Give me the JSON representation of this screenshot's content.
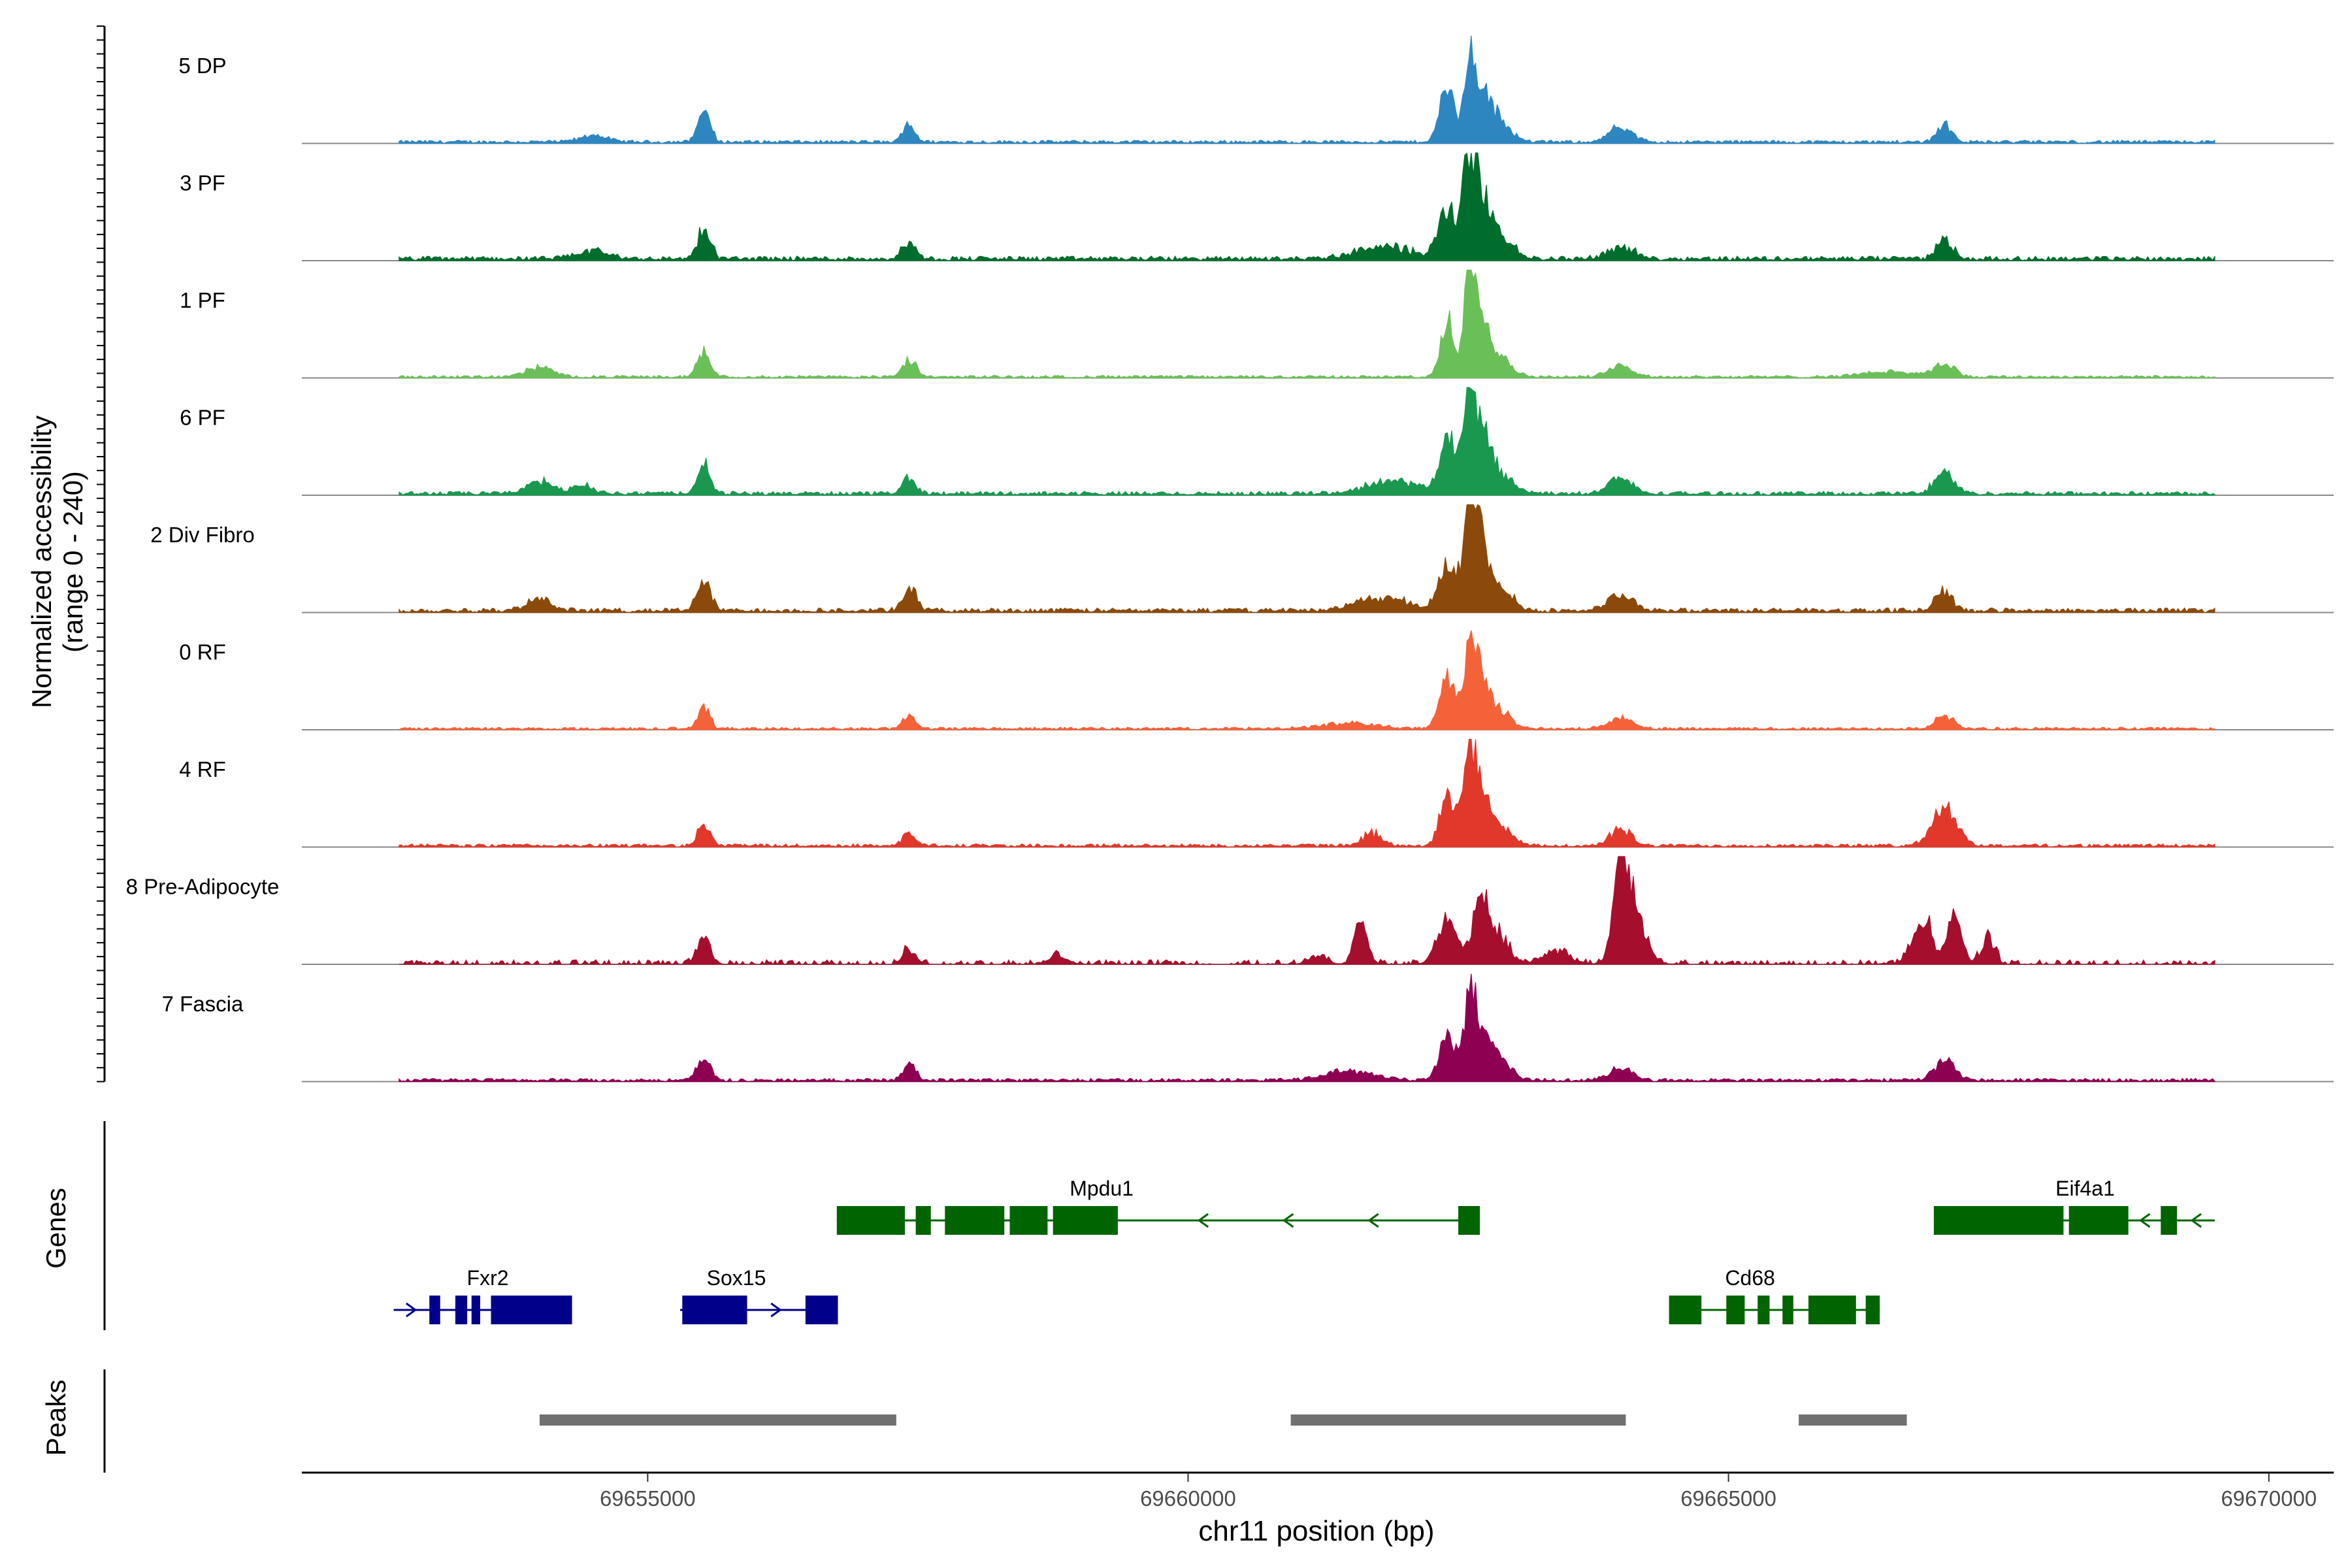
{
  "chart_data": {
    "type": "area",
    "title": "",
    "ylabel_line1": "Normalized accessibility",
    "ylabel_line2": "(range 0 - 240)",
    "xlabel": "chr11 position (bp)",
    "xlim": [
      69651800,
      69670600
    ],
    "x_ticks": [
      69655000,
      69660000,
      69665000,
      69670000
    ],
    "x_tick_labels": [
      "69655000",
      "69660000",
      "69665000",
      "69670000"
    ],
    "track_start": 69651800,
    "track_end": 69670600,
    "data_start": 69652700,
    "data_end": 69669500,
    "tracks": [
      {
        "name": "5 DP",
        "color": "#2E86C1",
        "noise": 0.05,
        "gap": 0,
        "peaks": [
          [
            69655520,
            0.27,
            55
          ],
          [
            69657420,
            0.18,
            50
          ],
          [
            69662400,
            0.47,
            70
          ],
          [
            69662600,
            0.62,
            45
          ],
          [
            69662700,
            0.4,
            80
          ],
          [
            69662850,
            0.2,
            120
          ],
          [
            69664000,
            0.12,
            110
          ],
          [
            69667000,
            0.15,
            70
          ],
          [
            69654500,
            0.06,
            120
          ]
        ]
      },
      {
        "name": "3 PF",
        "color": "#006D2C",
        "noise": 0.07,
        "gap": 0,
        "peaks": [
          [
            69655520,
            0.25,
            60
          ],
          [
            69657420,
            0.14,
            60
          ],
          [
            69662400,
            0.44,
            80
          ],
          [
            69662600,
            0.78,
            55
          ],
          [
            69662700,
            0.48,
            80
          ],
          [
            69662850,
            0.2,
            130
          ],
          [
            69664000,
            0.1,
            120
          ],
          [
            69667000,
            0.15,
            75
          ],
          [
            69654500,
            0.06,
            150
          ],
          [
            69661800,
            0.1,
            250
          ]
        ]
      },
      {
        "name": "1 PF",
        "color": "#6BBF59",
        "noise": 0.04,
        "gap": 0,
        "peaks": [
          [
            69655520,
            0.22,
            60
          ],
          [
            69657420,
            0.15,
            60
          ],
          [
            69662400,
            0.52,
            60
          ],
          [
            69662600,
            0.9,
            45
          ],
          [
            69662700,
            0.55,
            70
          ],
          [
            69662850,
            0.2,
            120
          ],
          [
            69664000,
            0.1,
            110
          ],
          [
            69667000,
            0.12,
            90
          ],
          [
            69654000,
            0.08,
            130
          ],
          [
            69666500,
            0.05,
            250
          ]
        ]
      },
      {
        "name": "6 PF",
        "color": "#1A9850",
        "noise": 0.06,
        "gap": 0,
        "peaks": [
          [
            69655520,
            0.25,
            55
          ],
          [
            69657420,
            0.14,
            60
          ],
          [
            69662400,
            0.5,
            70
          ],
          [
            69662600,
            0.76,
            55
          ],
          [
            69662700,
            0.46,
            80
          ],
          [
            69662850,
            0.2,
            130
          ],
          [
            69664000,
            0.12,
            110
          ],
          [
            69667000,
            0.18,
            90
          ],
          [
            69654000,
            0.1,
            120
          ],
          [
            69654400,
            0.06,
            120
          ],
          [
            69661900,
            0.1,
            250
          ]
        ]
      },
      {
        "name": "2 Div Fibro",
        "color": "#8B4A0B",
        "noise": 0.07,
        "gap": 0,
        "peaks": [
          [
            69655520,
            0.26,
            60
          ],
          [
            69657420,
            0.2,
            60
          ],
          [
            69662400,
            0.4,
            80
          ],
          [
            69662600,
            0.8,
            55
          ],
          [
            69662700,
            0.5,
            80
          ],
          [
            69662850,
            0.2,
            130
          ],
          [
            69664000,
            0.13,
            110
          ],
          [
            69667000,
            0.15,
            80
          ],
          [
            69654000,
            0.08,
            120
          ],
          [
            69661800,
            0.1,
            250
          ]
        ]
      },
      {
        "name": "0 RF",
        "color": "#F4623A",
        "noise": 0.04,
        "gap": 0,
        "peaks": [
          [
            69655520,
            0.22,
            50
          ],
          [
            69657420,
            0.13,
            50
          ],
          [
            69662400,
            0.46,
            70
          ],
          [
            69662600,
            0.7,
            50
          ],
          [
            69662700,
            0.45,
            70
          ],
          [
            69662850,
            0.18,
            120
          ],
          [
            69664000,
            0.1,
            110
          ],
          [
            69667000,
            0.12,
            80
          ],
          [
            69661500,
            0.05,
            250
          ]
        ]
      },
      {
        "name": "4 RF",
        "color": "#E0392B",
        "noise": 0.05,
        "gap": 0,
        "peaks": [
          [
            69655520,
            0.2,
            55
          ],
          [
            69657420,
            0.13,
            55
          ],
          [
            69662400,
            0.42,
            70
          ],
          [
            69662600,
            0.72,
            55
          ],
          [
            69662700,
            0.45,
            75
          ],
          [
            69662850,
            0.18,
            120
          ],
          [
            69664000,
            0.15,
            90
          ],
          [
            69667000,
            0.36,
            110
          ],
          [
            69661700,
            0.1,
            100
          ]
        ]
      },
      {
        "name": "8 Pre-Adipocyte",
        "color": "#A50F2D",
        "noise": 0.07,
        "gap": 0.5,
        "peaks": [
          [
            69655520,
            0.24,
            60
          ],
          [
            69657420,
            0.12,
            60
          ],
          [
            69661600,
            0.4,
            60
          ],
          [
            69662400,
            0.42,
            90
          ],
          [
            69662700,
            0.6,
            60
          ],
          [
            69662850,
            0.3,
            100
          ],
          [
            69664000,
            0.85,
            60
          ],
          [
            69664100,
            0.55,
            110
          ],
          [
            69666800,
            0.4,
            90
          ],
          [
            69667100,
            0.45,
            60
          ],
          [
            69667400,
            0.25,
            60
          ],
          [
            69663400,
            0.12,
            120
          ],
          [
            69658800,
            0.08,
            80
          ],
          [
            69661200,
            0.08,
            80
          ]
        ]
      },
      {
        "name": "7 Fascia",
        "color": "#8E0152",
        "noise": 0.05,
        "gap": 0,
        "peaks": [
          [
            69655520,
            0.22,
            55
          ],
          [
            69657420,
            0.15,
            60
          ],
          [
            69662400,
            0.4,
            70
          ],
          [
            69662600,
            0.58,
            60
          ],
          [
            69662700,
            0.38,
            80
          ],
          [
            69662850,
            0.18,
            120
          ],
          [
            69664000,
            0.1,
            110
          ],
          [
            69667000,
            0.18,
            90
          ],
          [
            69661500,
            0.07,
            250
          ]
        ]
      }
    ],
    "genes_label": "Genes",
    "genes": [
      {
        "name": "Mpdu1",
        "strand": "-",
        "color": "#006400",
        "row": 0,
        "start": 69656750,
        "end": 69662700,
        "exons": [
          [
            69656750,
            69657380
          ],
          [
            69657480,
            69657620
          ],
          [
            69657750,
            69658300
          ],
          [
            69658350,
            69658700
          ],
          [
            69658750,
            69659350
          ],
          [
            69662500,
            69662700
          ]
        ]
      },
      {
        "name": "Eif4a1",
        "strand": "-",
        "color": "#006400",
        "row": 0,
        "start": 69666900,
        "end": 69669500,
        "exons": [
          [
            69666900,
            69668100
          ],
          [
            69668150,
            69668700
          ],
          [
            69669000,
            69669150
          ]
        ]
      },
      {
        "name": "Fxr2",
        "strand": "+",
        "color": "#00008B",
        "row": 1,
        "start": 69652650,
        "end": 69654300,
        "exons": [
          [
            69652980,
            69653080
          ],
          [
            69653220,
            69653330
          ],
          [
            69653370,
            69653450
          ],
          [
            69653550,
            69654300
          ]
        ]
      },
      {
        "name": "Sox15",
        "strand": "+",
        "color": "#00008B",
        "row": 1,
        "start": 69655300,
        "end": 69656760,
        "exons": [
          [
            69655320,
            69655920
          ],
          [
            69656460,
            69656760
          ]
        ]
      },
      {
        "name": "Cd68",
        "strand": "-",
        "color": "#006400",
        "row": 1,
        "start": 69664450,
        "end": 69666400,
        "exons": [
          [
            69664450,
            69664750
          ],
          [
            69664980,
            69665150
          ],
          [
            69665270,
            69665380
          ],
          [
            69665500,
            69665600
          ],
          [
            69665740,
            69666180
          ],
          [
            69666270,
            69666400
          ]
        ]
      }
    ],
    "peaks_label": "Peaks",
    "peak_regions": [
      [
        69654000,
        69657300
      ],
      [
        69660950,
        69664050
      ],
      [
        69665650,
        69666650
      ]
    ]
  }
}
